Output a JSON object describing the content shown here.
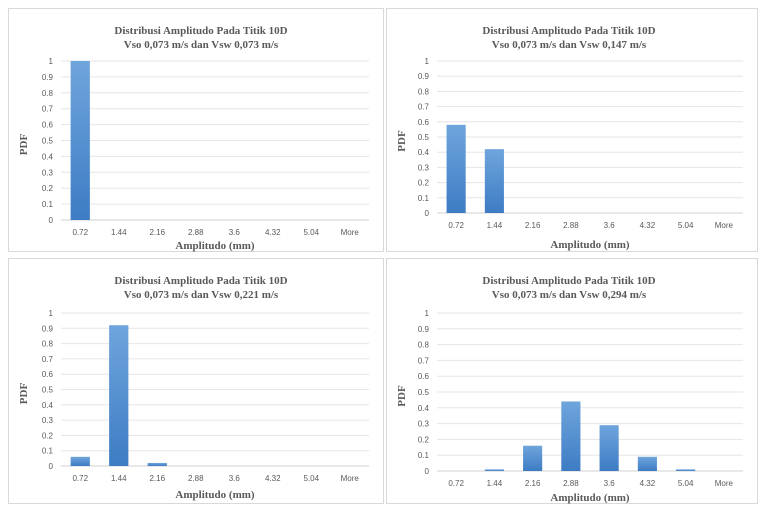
{
  "chart_data": [
    {
      "type": "bar",
      "title": "Distribusi Amplitudo Pada Titik 10D",
      "subtitle": "Vso 0,073 m/s dan Vsw 0,073 m/s",
      "xlabel": "Amplitudo (mm)",
      "ylabel": "PDF",
      "categories": [
        "0.72",
        "1.44",
        "2.16",
        "2.88",
        "3.6",
        "4.32",
        "5.04",
        "More"
      ],
      "values": [
        1.0,
        0,
        0,
        0,
        0,
        0,
        0,
        0
      ],
      "ylim": [
        0,
        1
      ],
      "yticks": [
        "0",
        "0.1",
        "0.2",
        "0.3",
        "0.4",
        "0.5",
        "0.6",
        "0.7",
        "0.8",
        "0.9",
        "1"
      ],
      "grid": true
    },
    {
      "type": "bar",
      "title": "Distribusi Amplitudo Pada Titik 10D",
      "subtitle": "Vso 0,073 m/s dan Vsw 0,147 m/s",
      "xlabel": "Amplitudo (mm)",
      "ylabel": "PDF",
      "categories": [
        "0.72",
        "1.44",
        "2.16",
        "2.88",
        "3.6",
        "4.32",
        "5.04",
        "More"
      ],
      "values": [
        0.58,
        0.42,
        0,
        0,
        0,
        0,
        0,
        0
      ],
      "ylim": [
        0,
        1
      ],
      "yticks": [
        "0",
        "0.1",
        "0.2",
        "0.3",
        "0.4",
        "0.5",
        "0.6",
        "0.7",
        "0.8",
        "0.9",
        "1"
      ],
      "grid": true
    },
    {
      "type": "bar",
      "title": "Distribusi Amplitudo Pada Titik 10D",
      "subtitle": "Vso 0,073 m/s dan Vsw 0,221 m/s",
      "xlabel": "Amplitudo (mm)",
      "ylabel": "PDF",
      "categories": [
        "0.72",
        "1.44",
        "2.16",
        "2.88",
        "3.6",
        "4.32",
        "5.04",
        "More"
      ],
      "values": [
        0.06,
        0.92,
        0.02,
        0,
        0,
        0,
        0,
        0
      ],
      "ylim": [
        0,
        1
      ],
      "yticks": [
        "0",
        "0.1",
        "0.2",
        "0.3",
        "0.4",
        "0.5",
        "0.6",
        "0.7",
        "0.8",
        "0.9",
        "1"
      ],
      "grid": true
    },
    {
      "type": "bar",
      "title": "Distribusi Amplitudo Pada Titik 10D",
      "subtitle": "Vso 0,073 m/s dan Vsw 0,294 m/s",
      "xlabel": "Amplitudo (mm)",
      "ylabel": "PDF",
      "categories": [
        "0.72",
        "1.44",
        "2.16",
        "2.88",
        "3.6",
        "4.32",
        "5.04",
        "More"
      ],
      "values": [
        0,
        0.01,
        0.16,
        0.44,
        0.29,
        0.09,
        0.01,
        0
      ],
      "ylim": [
        0,
        1
      ],
      "yticks": [
        "0",
        "0.1",
        "0.2",
        "0.3",
        "0.4",
        "0.5",
        "0.6",
        "0.7",
        "0.8",
        "0.9",
        "1"
      ],
      "grid": true
    }
  ],
  "colors": {
    "bar_top": "#6fa5dc",
    "bar_bottom": "#3d7cc4"
  }
}
